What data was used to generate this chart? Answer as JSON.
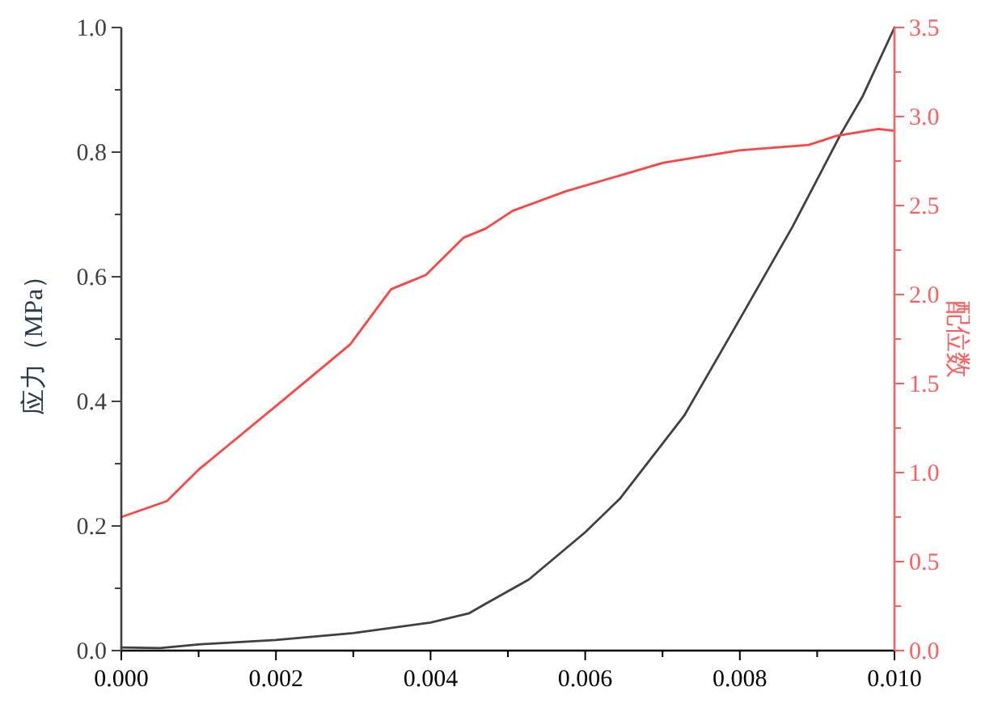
{
  "chart_data": {
    "type": "line",
    "ylabel": "应力（MPa）",
    "y2label": "配位数",
    "xlim": [
      0,
      0.01
    ],
    "xticks": [
      {
        "value": 0,
        "label": "0.000"
      },
      {
        "value": 0.001,
        "label": null
      },
      {
        "value": 0.002,
        "label": "0.002"
      },
      {
        "value": 0.003,
        "label": null
      },
      {
        "value": 0.004,
        "label": "0.004"
      },
      {
        "value": 0.005,
        "label": null
      },
      {
        "value": 0.006,
        "label": "0.006"
      },
      {
        "value": 0.007,
        "label": null
      },
      {
        "value": 0.008,
        "label": "0.008"
      },
      {
        "value": 0.009,
        "label": null
      },
      {
        "value": 0.01,
        "label": "0.010"
      }
    ],
    "ylim": [
      0,
      1
    ],
    "yticks": [
      {
        "value": 0,
        "label": "0.0"
      },
      {
        "value": 0.1,
        "label": null
      },
      {
        "value": 0.2,
        "label": "0.2"
      },
      {
        "value": 0.3,
        "label": null
      },
      {
        "value": 0.4,
        "label": "0.4"
      },
      {
        "value": 0.5,
        "label": null
      },
      {
        "value": 0.6,
        "label": "0.6"
      },
      {
        "value": 0.7,
        "label": null
      },
      {
        "value": 0.8,
        "label": "0.8"
      },
      {
        "value": 0.9,
        "label": null
      },
      {
        "value": 1,
        "label": "1.0"
      }
    ],
    "y2lim": [
      0,
      3.5
    ],
    "y2ticks": [
      {
        "value": 0,
        "label": "0.0"
      },
      {
        "value": 0.25,
        "label": null
      },
      {
        "value": 0.5,
        "label": "0.5"
      },
      {
        "value": 0.75,
        "label": null
      },
      {
        "value": 1,
        "label": "1.0"
      },
      {
        "value": 1.25,
        "label": null
      },
      {
        "value": 1.5,
        "label": "1.5"
      },
      {
        "value": 1.75,
        "label": null
      },
      {
        "value": 2,
        "label": "2.0"
      },
      {
        "value": 2.25,
        "label": null
      },
      {
        "value": 2.5,
        "label": "2.5"
      },
      {
        "value": 2.75,
        "label": null
      },
      {
        "value": 3,
        "label": "3.0"
      },
      {
        "value": 3.25,
        "label": null
      },
      {
        "value": 3.5,
        "label": "3.5"
      }
    ],
    "grid": false,
    "marker": "none",
    "line_style": "solid",
    "series": [
      {
        "color": "#404040",
        "x": [
          0,
          0.0005,
          0.001,
          0.002,
          0.003,
          0.004,
          0.0045,
          0.00471,
          0.00527,
          0.006,
          0.00645,
          0.00728,
          0.00799,
          0.00868,
          0.00931,
          0.00959,
          0.01
        ],
        "values": [
          0.005,
          0.004,
          0.01,
          0.017,
          0.028,
          0.045,
          0.06,
          0.075,
          0.114,
          0.19,
          0.244,
          0.377,
          0.53,
          0.68,
          0.83,
          0.89,
          1.0
        ]
      },
      {
        "color": "#ff4444",
        "axis": "y2",
        "x": [
          0,
          0.00059,
          0.00101,
          0.00199,
          0.00296,
          0.00349,
          0.00394,
          0.00443,
          0.00471,
          0.00506,
          0.00575,
          0.00701,
          0.00799,
          0.00889,
          0.00924,
          0.00979,
          0.01
        ],
        "values": [
          0.75,
          0.84,
          1.02,
          1.37,
          1.72,
          2.03,
          2.11,
          2.32,
          2.37,
          2.47,
          2.58,
          2.74,
          2.81,
          2.84,
          2.89,
          2.93,
          2.92
        ]
      }
    ]
  }
}
